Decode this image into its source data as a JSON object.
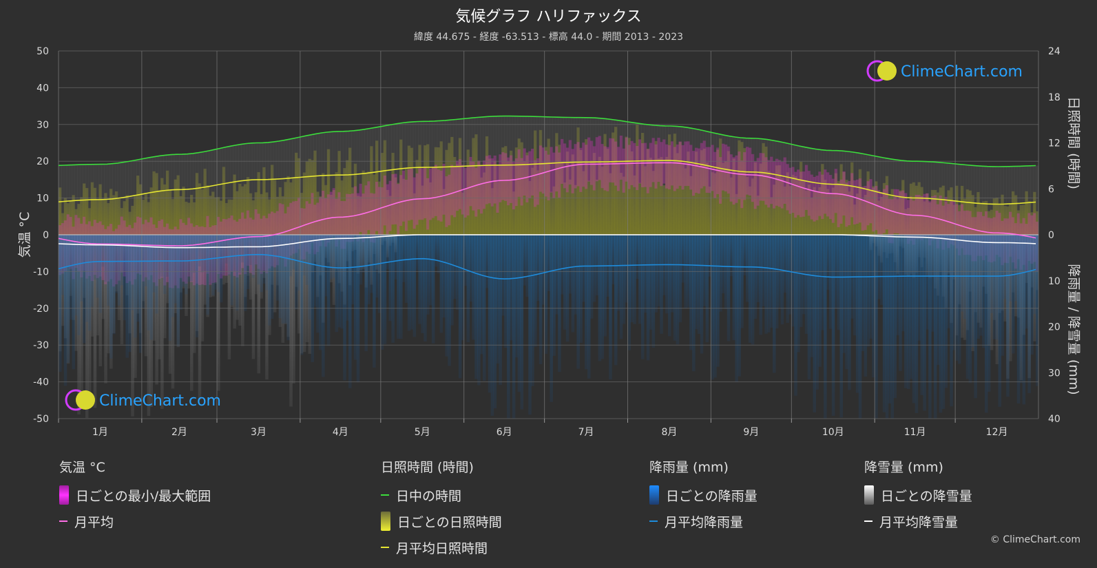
{
  "header": {
    "title": "気候グラフ ハリファックス",
    "subtitle": "緯度 44.675 - 経度 -63.513 - 標高 44.0 - 期間 2013 - 2023"
  },
  "logo": {
    "text": "ClimeChart.com"
  },
  "copyright": "© ClimeChart.com",
  "colors": {
    "background": "#2f2f2f",
    "daylight": "#3cdc3c",
    "sunshine": "#e6e632",
    "temp_mean": "#ff6ee6",
    "temp_range": "#e632c8",
    "rain": "#1e8cdc",
    "snow": "#ffffff"
  },
  "legend": {
    "temperature": {
      "heading": "気温 °C",
      "items": [
        {
          "label": "日ごとの最小/最大範囲",
          "icon": "magenta-bar-swatch"
        },
        {
          "label": "月平均",
          "icon": "pink-line-swatch"
        }
      ]
    },
    "sunshine": {
      "heading": "日照時間 (時間)",
      "items": [
        {
          "label": "日中の時間",
          "icon": "green-line-swatch"
        },
        {
          "label": "日ごとの日照時間",
          "icon": "yellow-bar-swatch"
        },
        {
          "label": "月平均日照時間",
          "icon": "yellow-line-swatch"
        }
      ]
    },
    "rain": {
      "heading": "降雨量 (mm)",
      "items": [
        {
          "label": "日ごとの降雨量",
          "icon": "blue-bar-swatch"
        },
        {
          "label": "月平均降雨量",
          "icon": "blue-line-swatch"
        }
      ]
    },
    "snow": {
      "heading": "降雪量 (mm)",
      "items": [
        {
          "label": "日ごとの降雪量",
          "icon": "white-bar-swatch"
        },
        {
          "label": "月平均降雪量",
          "icon": "white-line-swatch"
        }
      ]
    }
  },
  "chart_data": {
    "type": "line",
    "title": "気候グラフ ハリファックス",
    "subtitle": "緯度 44.675 - 経度 -63.513 - 標高 44.0 - 期間 2013 - 2023",
    "categories": [
      "1月",
      "2月",
      "3月",
      "4月",
      "5月",
      "6月",
      "7月",
      "8月",
      "9月",
      "10月",
      "11月",
      "12月"
    ],
    "y_left": {
      "label": "気温 °C",
      "ylim": [
        -50,
        50
      ],
      "ticks": [
        "50",
        "40",
        "30",
        "20",
        "10",
        "0",
        "-10",
        "-20",
        "-30",
        "-40",
        "-50"
      ]
    },
    "y_right_top": {
      "label": "日照時間 (時間)",
      "ylim": [
        0,
        24
      ],
      "ticks": [
        "24",
        "18",
        "12",
        "6",
        "0"
      ]
    },
    "y_right_bottom": {
      "label": "降雨量 / 降雪量 (mm)",
      "ylim": [
        0,
        40
      ],
      "ticks": [
        "10",
        "20",
        "30",
        "40"
      ]
    },
    "grid": true,
    "series": [
      {
        "name": "日中の時間",
        "unit": "hours",
        "values": [
          9.2,
          10.5,
          12.0,
          13.5,
          14.8,
          15.5,
          15.3,
          14.2,
          12.6,
          11.0,
          9.6,
          8.9
        ]
      },
      {
        "name": "月平均日照時間",
        "unit": "hours",
        "values": [
          4.6,
          5.9,
          7.2,
          7.8,
          8.8,
          9.1,
          9.5,
          9.7,
          8.2,
          6.6,
          4.8,
          4.0
        ]
      },
      {
        "name": "月平均",
        "unit": "°C",
        "values": [
          -2.5,
          -3.0,
          -0.5,
          4.8,
          9.8,
          14.8,
          19.2,
          19.6,
          16.3,
          11.2,
          5.3,
          0.5
        ]
      },
      {
        "name": "月平均降雨量",
        "unit": "mm",
        "values": [
          5.8,
          5.7,
          4.3,
          7.2,
          5.2,
          9.6,
          6.8,
          6.5,
          7.0,
          9.2,
          9.0,
          9.0
        ]
      },
      {
        "name": "月平均降雪量",
        "unit": "mm",
        "values": [
          2.2,
          2.8,
          2.6,
          0.8,
          0.0,
          0.0,
          0.0,
          0.0,
          0.0,
          0.0,
          0.5,
          1.7
        ]
      },
      {
        "name": "日ごとの最小/最大範囲",
        "unit": "°C",
        "min": [
          -12,
          -13,
          -9,
          -2,
          3,
          8,
          13,
          13,
          9,
          4,
          -2,
          -7
        ],
        "max": [
          3,
          3,
          6,
          11,
          17,
          21,
          25,
          25,
          22,
          16,
          10,
          5
        ]
      }
    ]
  }
}
